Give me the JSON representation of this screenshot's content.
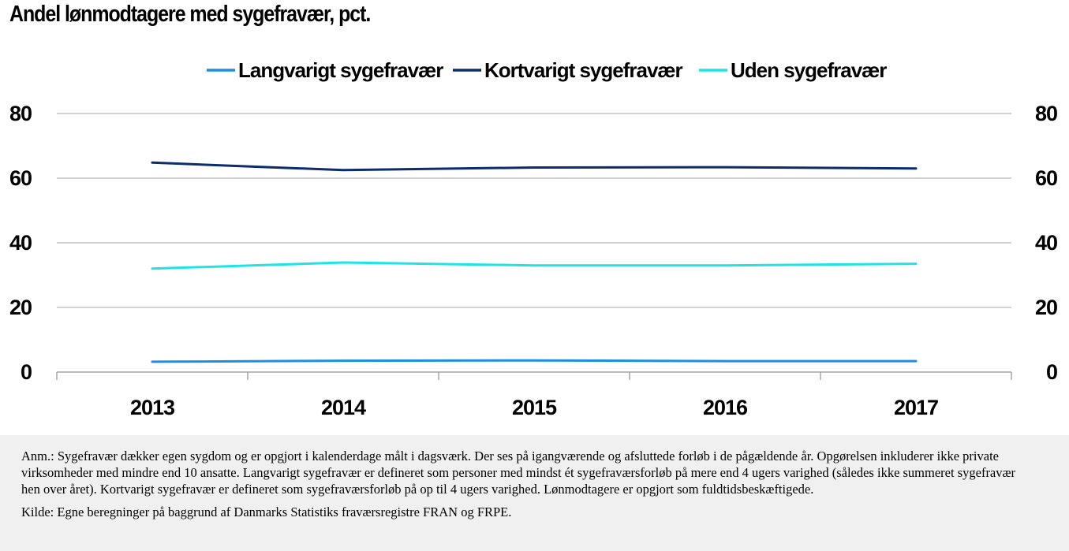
{
  "title": "Andel lønmodtagere med sygefravær, pct.",
  "notes": {
    "annotation": "Anm.: Sygefravær dækker egen sygdom og er opgjort i kalenderdage målt i dagsværk. Der ses på igangværende og afsluttede forløb i de pågældende år. Opgørelsen inkluderer ikke private virksomheder med mindre end 10 ansatte. Langvarigt sygefravær er defineret som personer med mindst ét sygefraværsforløb på mere end 4 ugers varighed (således ikke summeret sygefravær hen over året). Kortvarigt sygefravær er defineret som sygefraværsforløb på op til 4 ugers varighed. Lønmodtagere er opgjort som fuldtidsbeskæftigede.",
    "source": "Kilde: Egne beregninger på baggrund af Danmarks Statistiks fraværsregistre FRAN og FRPE."
  },
  "chart_data": {
    "type": "line",
    "title": "Andel lønmodtagere med sygefravær, pct.",
    "xlabel": "",
    "ylabel": "",
    "categories": [
      "2013",
      "2014",
      "2015",
      "2016",
      "2017"
    ],
    "ylim": [
      0,
      80
    ],
    "yticks": [
      "0",
      "20",
      "40",
      "60",
      "80"
    ],
    "secondary_axis": true,
    "grid": true,
    "legend_position": "top-center",
    "series": [
      {
        "name": "Langvarigt sygefravær",
        "color": "#1b8fe6",
        "values": [
          3.2,
          3.5,
          3.6,
          3.4,
          3.4
        ]
      },
      {
        "name": "Kortvarigt sygefravær",
        "color": "#0c2c6e",
        "values": [
          64.8,
          62.5,
          63.3,
          63.4,
          63.0
        ]
      },
      {
        "name": "Uden sygefravær",
        "color": "#1ee3e8",
        "values": [
          32.0,
          33.9,
          33.0,
          33.0,
          33.5
        ]
      }
    ]
  }
}
